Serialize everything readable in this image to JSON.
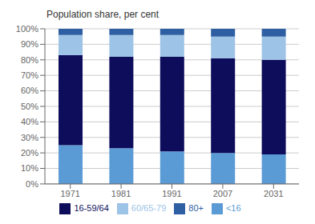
{
  "chart_data": {
    "type": "bar",
    "stacked": true,
    "title": "Population share, per cent",
    "categories": [
      "1971",
      "1981",
      "1991",
      "2007",
      "2031"
    ],
    "series": [
      {
        "name": "<16",
        "color": "#5b9bd5",
        "values": [
          25,
          23,
          21,
          20,
          19
        ]
      },
      {
        "name": "16-59/64",
        "color": "#0d0d5c",
        "values": [
          58,
          59,
          61,
          61,
          61
        ]
      },
      {
        "name": "60/65-79",
        "color": "#9dc3e6",
        "values": [
          13,
          14,
          14,
          14,
          15
        ]
      },
      {
        "name": "80+",
        "color": "#2e5fa3",
        "values": [
          4,
          4,
          4,
          5,
          5
        ]
      }
    ],
    "ylim": [
      0,
      100
    ],
    "yticks": [
      {
        "value": 0,
        "label": "0%"
      },
      {
        "value": 10,
        "label": "10%"
      },
      {
        "value": 20,
        "label": "20%"
      },
      {
        "value": 30,
        "label": "30%"
      },
      {
        "value": 40,
        "label": "40%"
      },
      {
        "value": 50,
        "label": "50%"
      },
      {
        "value": 60,
        "label": "60%"
      },
      {
        "value": 70,
        "label": "70%"
      },
      {
        "value": 80,
        "label": "80%"
      },
      {
        "value": 90,
        "label": "90%"
      },
      {
        "value": 100,
        "label": "100%"
      }
    ],
    "grid": true,
    "legend": "bottom"
  }
}
